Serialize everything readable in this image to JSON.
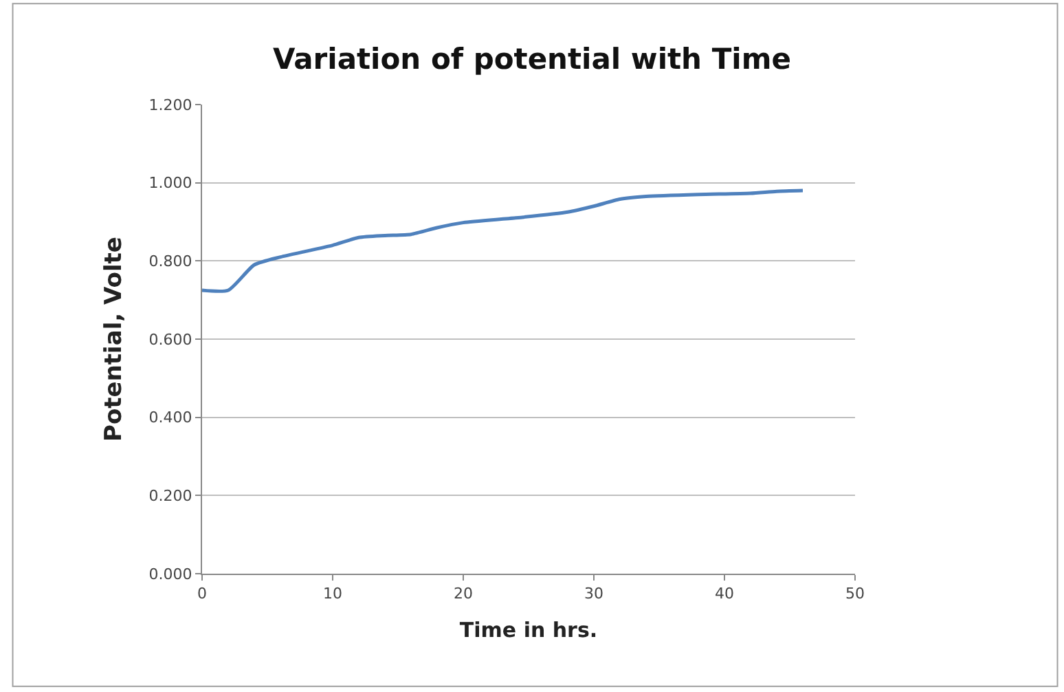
{
  "chart_data": {
    "type": "line",
    "title": "Variation of potential with Time",
    "xlabel": "Time in hrs.",
    "ylabel": "Potential, Volte",
    "x": [
      0,
      2,
      4,
      6,
      8,
      10,
      12,
      14,
      16,
      18,
      20,
      24,
      28,
      30,
      32,
      34,
      38,
      42,
      44,
      46
    ],
    "series": [
      {
        "color": "#4f81bd",
        "values": [
          0.725,
          0.725,
          0.79,
          0.81,
          0.825,
          0.84,
          0.86,
          0.865,
          0.868,
          0.885,
          0.898,
          0.91,
          0.925,
          0.94,
          0.958,
          0.965,
          0.97,
          0.973,
          0.978,
          0.98
        ]
      }
    ],
    "xlim": [
      0,
      50
    ],
    "xticks": [
      0,
      10,
      20,
      30,
      40,
      50
    ],
    "ylim": [
      0,
      1.2
    ],
    "yticks": [
      {
        "value": 0,
        "label": "0.000"
      },
      {
        "value": 0.2,
        "label": "0.200"
      },
      {
        "value": 0.4,
        "label": "0.400"
      },
      {
        "value": 0.6,
        "label": "0.600"
      },
      {
        "value": 0.8,
        "label": "0.800"
      },
      {
        "value": 1.0,
        "label": "1.000"
      },
      {
        "value": 1.2,
        "label": "1.200"
      }
    ],
    "grid": "y",
    "marker": "none",
    "line_style": "solid"
  }
}
